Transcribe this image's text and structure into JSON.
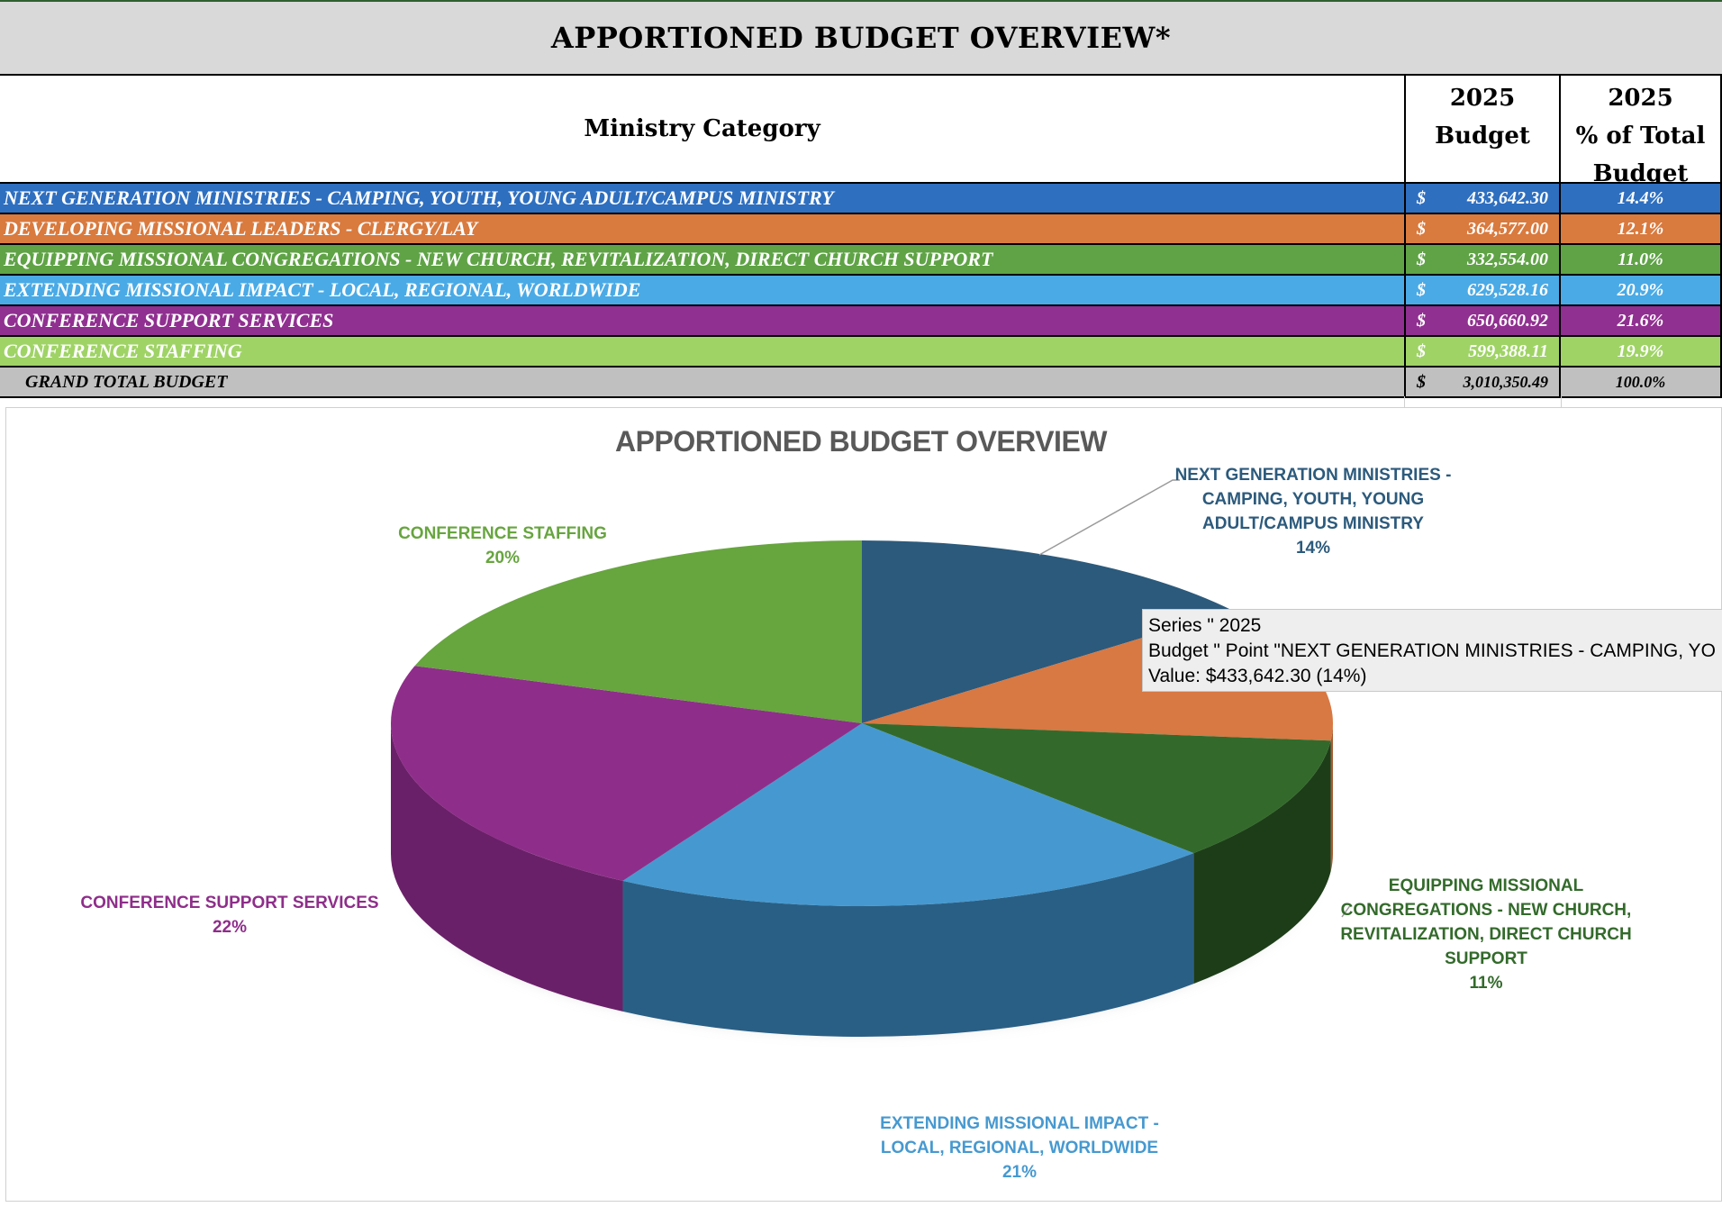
{
  "table": {
    "title": "APPORTIONED BUDGET OVERVIEW*",
    "col_category": "Ministry Category",
    "col_budget_line1": "2025",
    "col_budget_line2": "Budget",
    "col_pct_line1": "2025",
    "col_pct_line2": "% of Total",
    "col_pct_line3": "Budget",
    "rows": [
      {
        "category": "NEXT GENERATION MINISTRIES - CAMPING, YOUTH, YOUNG ADULT/CAMPUS MINISTRY",
        "currency": "$",
        "budget": "433,642.30",
        "pct": "14.4%",
        "bg": "#2e6fc0",
        "fg": "#ffffff"
      },
      {
        "category": "DEVELOPING MISSIONAL LEADERS - CLERGY/LAY",
        "currency": "$",
        "budget": "364,577.00",
        "pct": "12.1%",
        "bg": "#d97a3e",
        "fg": "#ffffff"
      },
      {
        "category": "EQUIPPING MISSIONAL CONGREGATIONS - NEW CHURCH, REVITALIZATION, DIRECT CHURCH SUPPORT",
        "currency": "$",
        "budget": "332,554.00",
        "pct": "11.0%",
        "bg": "#5fa346",
        "fg": "#ffffff"
      },
      {
        "category": "EXTENDING MISSIONAL IMPACT - LOCAL, REGIONAL, WORLDWIDE",
        "currency": "$",
        "budget": "629,528.16",
        "pct": "20.9%",
        "bg": "#4aaae6",
        "fg": "#ffffff"
      },
      {
        "category": "CONFERENCE SUPPORT SERVICES",
        "currency": "$",
        "budget": "650,660.92",
        "pct": "21.6%",
        "bg": "#903090",
        "fg": "#ffffff"
      },
      {
        "category": "CONFERENCE STAFFING",
        "currency": "$",
        "budget": "599,388.11",
        "pct": "19.9%",
        "bg": "#9fd366",
        "fg": "#ffffff"
      },
      {
        "category": "GRAND TOTAL BUDGET",
        "currency": "$",
        "budget": "3,010,350.49",
        "pct": "100.0%",
        "bg": "#c0c0c0",
        "fg": "#000000"
      }
    ]
  },
  "chart_data": {
    "type": "pie",
    "title": "APPORTIONED BUDGET OVERVIEW",
    "categories": [
      "NEXT GENERATION MINISTRIES - CAMPING, YOUTH, YOUNG ADULT/CAMPUS MINISTRY",
      "DEVELOPING MISSIONAL LEADERS - CLERGY/LAY",
      "EQUIPPING MISSIONAL CONGREGATIONS - NEW CHURCH, REVITALIZATION, DIRECT CHURCH SUPPORT",
      "EXTENDING MISSIONAL IMPACT - LOCAL, REGIONAL, WORLDWIDE",
      "CONFERENCE SUPPORT SERVICES",
      "CONFERENCE STAFFING"
    ],
    "values": [
      433642.3,
      364577.0,
      332554.0,
      629528.16,
      650660.92,
      599388.11
    ],
    "colors": [
      "#2c5a7c",
      "#d87843",
      "#336a2b",
      "#4699d0",
      "#8e2e8a",
      "#67a53f"
    ],
    "side_colors": [
      "#1f4058",
      "#a85a30",
      "#1d3d18",
      "#2a5f85",
      "#6a2068",
      "#4a7a2e"
    ],
    "labels": [
      {
        "lines": [
          "NEXT GENERATION MINISTRIES -",
          "CAMPING, YOUTH, YOUNG",
          "ADULT/CAMPUS MINISTRY"
        ],
        "pct": "14%",
        "color": "#2c5a7c"
      },
      {
        "lines": [],
        "pct": "",
        "color": "#d87843"
      },
      {
        "lines": [
          "EQUIPPING MISSIONAL",
          "CONGREGATIONS - NEW CHURCH,",
          "REVITALIZATION, DIRECT CHURCH",
          "SUPPORT"
        ],
        "pct": "11%",
        "color": "#336a2b"
      },
      {
        "lines": [
          "EXTENDING MISSIONAL IMPACT -",
          "LOCAL, REGIONAL, WORLDWIDE"
        ],
        "pct": "21%",
        "color": "#4699d0"
      },
      {
        "lines": [
          "CONFERENCE SUPPORT SERVICES"
        ],
        "pct": "22%",
        "color": "#8e2e8a"
      },
      {
        "lines": [
          "CONFERENCE STAFFING"
        ],
        "pct": "20%",
        "color": "#67a53f"
      }
    ]
  },
  "tooltip": {
    "line1": "Series \" 2025",
    "line2": "Budget \" Point \"NEXT GENERATION MINISTRIES - CAMPING, YO",
    "line3": "Value:  $433,642.30  (14%)"
  }
}
